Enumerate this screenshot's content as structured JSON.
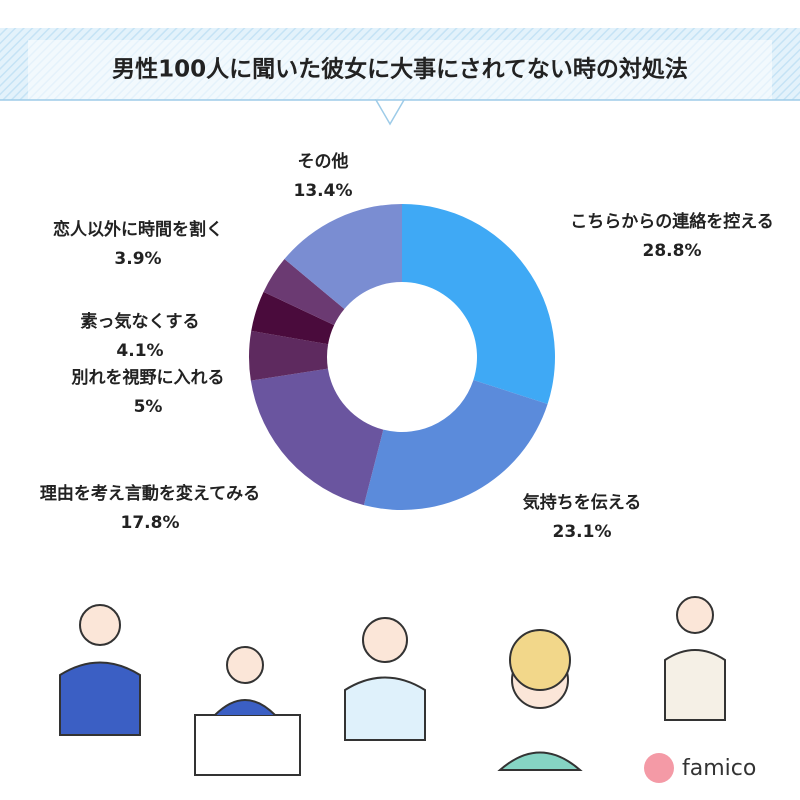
{
  "chart_data": {
    "type": "donut",
    "title": "男性100人に聞いた彼女に大事にされてない時の対処法",
    "categories": [
      "こちらからの連絡を控える",
      "気持ちを伝える",
      "理由を考え言動を変えてみる",
      "別れを視野に入れる",
      "素っ気なくする",
      "恋人以外に時間を割く",
      "その他"
    ],
    "values": [
      28.8,
      23.1,
      17.8,
      5,
      4.1,
      3.9,
      13.4
    ],
    "value_labels": [
      "28.8%",
      "23.1%",
      "17.8%",
      "5%",
      "4.1%",
      "3.9%",
      "13.4%"
    ],
    "colors": [
      "#3fa9f5",
      "#5b8bdb",
      "#6a559f",
      "#5e2a5f",
      "#4a0b3c",
      "#6b3a72",
      "#7a8dd2"
    ]
  },
  "logo": "famico"
}
